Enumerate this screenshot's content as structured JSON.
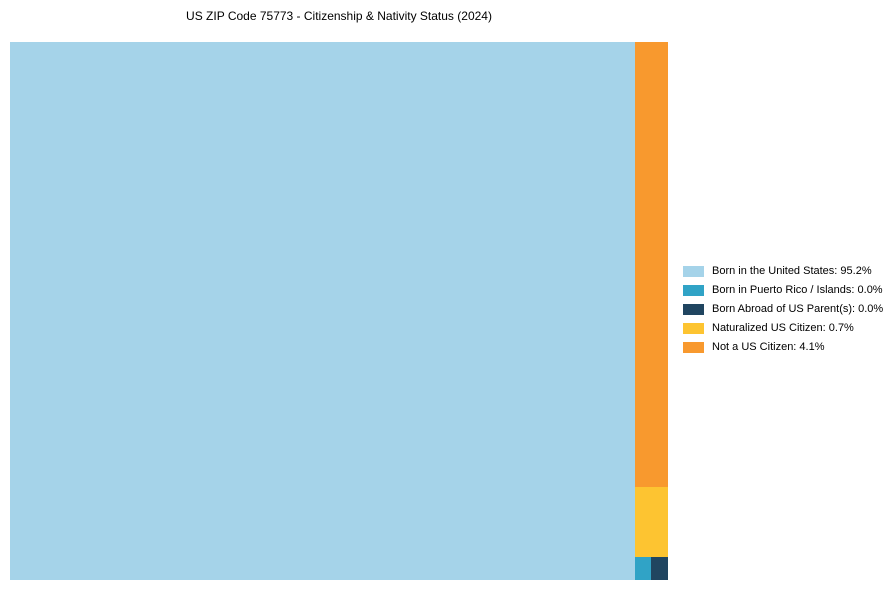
{
  "page": {
    "title": "US ZIP Code 75773 - Citizenship & Nativity Status (2024)"
  },
  "colors": {
    "background": "#FFFFFF",
    "born_in_us": "#A5D3E9",
    "born_in_pr_islands": "#30A3C6",
    "born_abroad_us_parents": "#204560",
    "naturalized_citizen": "#FDC431",
    "not_a_citizen": "#F8992E"
  },
  "legend": {
    "position": "right",
    "items": [
      {
        "label": "Born in the United States: 95.2%",
        "color": "#A5D3E9"
      },
      {
        "label": "Born in Puerto Rico / Islands: 0.0%",
        "color": "#30A3C6"
      },
      {
        "label": "Born Abroad of US Parent(s): 0.0%",
        "color": "#204560"
      },
      {
        "label": "Naturalized US Citizen: 0.7%",
        "color": "#FDC431"
      },
      {
        "label": "Not a US Citizen: 4.1%",
        "color": "#F8992E"
      }
    ]
  },
  "chart_data": {
    "type": "treemap",
    "title": "US ZIP Code 75773 - Citizenship & Nativity Status (2024)",
    "categories": [
      "Born in the United States",
      "Born in Puerto Rico / Islands",
      "Born Abroad of US Parent(s)",
      "Naturalized US Citizen",
      "Not a US Citizen"
    ],
    "values": [
      95.2,
      0.0,
      0.0,
      0.7,
      4.1
    ],
    "unit": "%",
    "colors": [
      "#A5D3E9",
      "#30A3C6",
      "#204560",
      "#FDC431",
      "#F8992E"
    ],
    "legend_position": "right",
    "grid": false
  }
}
